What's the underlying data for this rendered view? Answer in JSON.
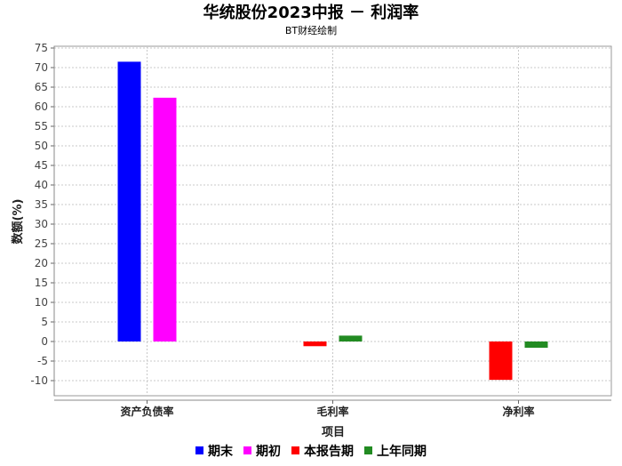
{
  "chart_data": {
    "type": "bar",
    "title": "华统股份2023中报 － 利润率",
    "subtitle": "BT财经绘制",
    "xlabel": "项目",
    "ylabel": "数额(%)",
    "ylim": [
      -12,
      75
    ],
    "yticks": [
      -10,
      -5,
      0,
      5,
      10,
      15,
      20,
      25,
      30,
      35,
      40,
      45,
      50,
      55,
      60,
      65,
      70,
      75
    ],
    "categories": [
      "资产负债率",
      "毛利率",
      "净利率"
    ],
    "series": [
      {
        "name": "期末",
        "color": "#0000ff",
        "values": [
          71.5,
          null,
          null
        ]
      },
      {
        "name": "期初",
        "color": "#ff00ff",
        "values": [
          62.3,
          null,
          null
        ]
      },
      {
        "name": "本报告期",
        "color": "#ff0000",
        "values": [
          null,
          -1.2,
          -9.8
        ]
      },
      {
        "name": "上年同期",
        "color": "#228b22",
        "values": [
          null,
          1.5,
          -1.6
        ]
      }
    ],
    "grid": true,
    "legend_position": "bottom"
  }
}
